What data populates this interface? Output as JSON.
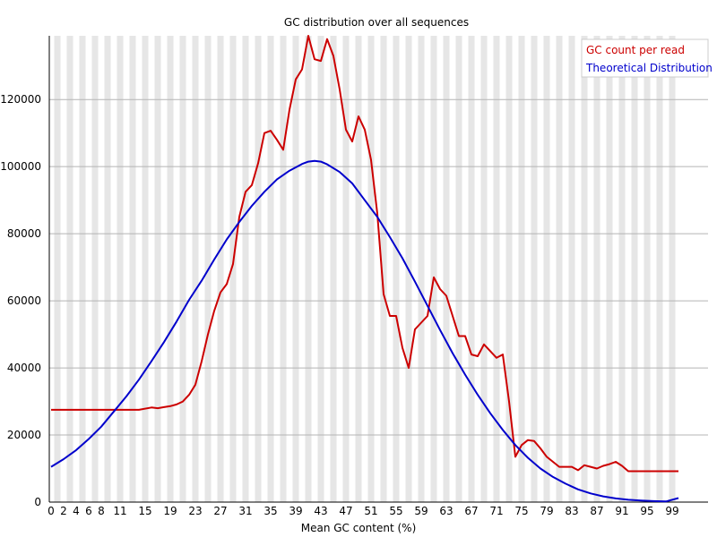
{
  "chart_data": {
    "type": "line",
    "title": "GC distribution over all sequences",
    "xlabel": "Mean GC content (%)",
    "ylabel": "",
    "xlim": [
      0,
      100
    ],
    "ylim": [
      0,
      139000
    ],
    "grid": true,
    "legend_position": "top-right",
    "x_tick_labels": [
      "0",
      "2",
      "4",
      "6",
      "8",
      "11",
      "15",
      "19",
      "23",
      "27",
      "31",
      "35",
      "39",
      "43",
      "47",
      "51",
      "55",
      "59",
      "63",
      "67",
      "71",
      "75",
      "79",
      "83",
      "87",
      "91",
      "95",
      "99"
    ],
    "y_tick_values": [
      0,
      20000,
      40000,
      60000,
      80000,
      100000,
      120000
    ],
    "y_tick_labels": [
      "0",
      "20000",
      "40000",
      "60000",
      "80000",
      "100000",
      "120000"
    ],
    "series": [
      {
        "name": "GC count per read",
        "color": "#cc0000",
        "x": [
          0,
          2,
          4,
          6,
          8,
          10,
          12,
          14,
          16,
          17,
          18,
          19,
          20,
          21,
          22,
          23,
          24,
          25,
          26,
          27,
          28,
          29,
          30,
          31,
          32,
          33,
          34,
          35,
          36,
          37,
          38,
          39,
          40,
          41,
          42,
          43,
          44,
          45,
          46,
          47,
          48,
          49,
          50,
          51,
          52,
          53,
          54,
          55,
          56,
          57,
          58,
          59,
          60,
          61,
          62,
          63,
          64,
          65,
          66,
          67,
          68,
          69,
          70,
          71,
          72,
          73,
          74,
          75,
          76,
          77,
          78,
          79,
          80,
          81,
          82,
          83,
          84,
          85,
          86,
          87,
          88,
          89,
          90,
          91,
          92,
          93,
          94,
          95,
          96,
          97,
          98,
          99,
          100
        ],
        "values": [
          27500,
          27500,
          27500,
          27500,
          27500,
          27500,
          27500,
          27500,
          28200,
          28000,
          28300,
          28600,
          29100,
          30000,
          32000,
          35000,
          42000,
          50000,
          57000,
          62500,
          65000,
          71000,
          85000,
          92500,
          94500,
          101000,
          110000,
          110700,
          108000,
          105000,
          117000,
          126000,
          129000,
          139000,
          132000,
          131500,
          138000,
          133000,
          123000,
          111000,
          107500,
          115000,
          111000,
          102000,
          86000,
          62000,
          55500,
          55500,
          46000,
          40000,
          51500,
          53500,
          55500,
          67000,
          63500,
          61500,
          55500,
          49500,
          49500,
          44000,
          43500,
          47000,
          45000,
          43000,
          44000,
          30000,
          13500,
          17000,
          18500,
          18200,
          16000,
          13500,
          12000,
          10500,
          10500,
          10500,
          9500,
          11000,
          10500,
          10000,
          10800,
          11300,
          12000,
          10800,
          9200,
          9200,
          9200,
          9200,
          9200,
          9200,
          9200,
          9200,
          9200
        ]
      },
      {
        "name": "Theoretical Distribution",
        "color": "#0000cc",
        "x": [
          0,
          2,
          4,
          6,
          8,
          10,
          12,
          14,
          16,
          18,
          20,
          22,
          24,
          26,
          28,
          30,
          32,
          34,
          36,
          38,
          40,
          41,
          42,
          43,
          44,
          46,
          48,
          50,
          52,
          54,
          56,
          58,
          60,
          62,
          64,
          66,
          68,
          70,
          72,
          74,
          76,
          78,
          80,
          82,
          84,
          86,
          88,
          90,
          92,
          94,
          96,
          98,
          100
        ],
        "values": [
          10500,
          12800,
          15500,
          18800,
          22500,
          27000,
          31500,
          36500,
          42000,
          47700,
          53800,
          60300,
          66000,
          72300,
          78300,
          83500,
          88300,
          92500,
          96200,
          98800,
          100800,
          101500,
          101700,
          101500,
          100700,
          98400,
          95000,
          90000,
          85000,
          79000,
          72700,
          65700,
          58500,
          51300,
          44400,
          38000,
          32000,
          26500,
          21500,
          17000,
          13200,
          10000,
          7500,
          5500,
          3800,
          2600,
          1700,
          1100,
          700,
          450,
          300,
          200,
          1200
        ]
      }
    ]
  }
}
